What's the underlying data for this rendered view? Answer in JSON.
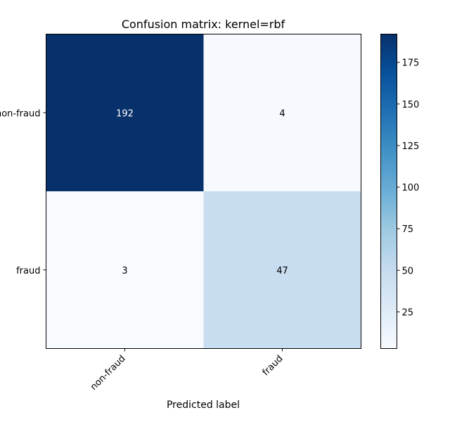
{
  "chart_data": {
    "type": "heatmap",
    "title": "Confusion matrix: kernel=rbf",
    "xlabel": "Predicted label",
    "ylabel": "",
    "x_categories": [
      "non-fraud",
      "fraud"
    ],
    "y_categories": [
      "non-fraud",
      "fraud"
    ],
    "values": [
      [
        192,
        4
      ],
      [
        3,
        47
      ]
    ],
    "colormap": "Blues",
    "color_range": [
      3,
      192
    ],
    "colorbar_ticks": [
      25,
      50,
      75,
      100,
      125,
      150,
      175
    ],
    "colors": {
      "low": "#f7fbff",
      "high": "#08306b",
      "text_dark": "#000000",
      "text_light": "#ffffff"
    }
  }
}
